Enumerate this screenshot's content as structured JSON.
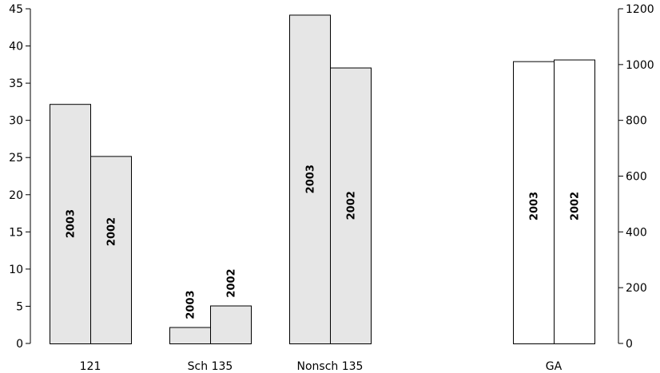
{
  "chart_data": {
    "type": "bar",
    "title": "",
    "xlabel": "",
    "left_axis": {
      "ylim": [
        0,
        45
      ],
      "ticks": [
        0,
        5,
        10,
        15,
        20,
        25,
        30,
        35,
        40,
        45
      ]
    },
    "right_axis": {
      "ylim": [
        0,
        1200
      ],
      "ticks": [
        0,
        200,
        400,
        600,
        800,
        1000,
        1200
      ]
    },
    "grid": false,
    "groups": [
      {
        "category": "121",
        "axis": "left",
        "fill": "#e6e6e6",
        "bars": [
          {
            "label": "2003",
            "value": 32.2
          },
          {
            "label": "2002",
            "value": 25.2
          }
        ]
      },
      {
        "category": "Sch 135",
        "axis": "left",
        "fill": "#e6e6e6",
        "bars": [
          {
            "label": "2003",
            "value": 2.2
          },
          {
            "label": "2002",
            "value": 5.1
          }
        ]
      },
      {
        "category": "Nonsch 135",
        "axis": "left",
        "fill": "#e6e6e6",
        "bars": [
          {
            "label": "2003",
            "value": 44.2
          },
          {
            "label": "2002",
            "value": 37.1
          }
        ]
      },
      {
        "category": "GA",
        "axis": "right",
        "fill": "#ffffff",
        "bars": [
          {
            "label": "2003",
            "value": 1012
          },
          {
            "label": "2002",
            "value": 1018
          }
        ]
      }
    ]
  }
}
